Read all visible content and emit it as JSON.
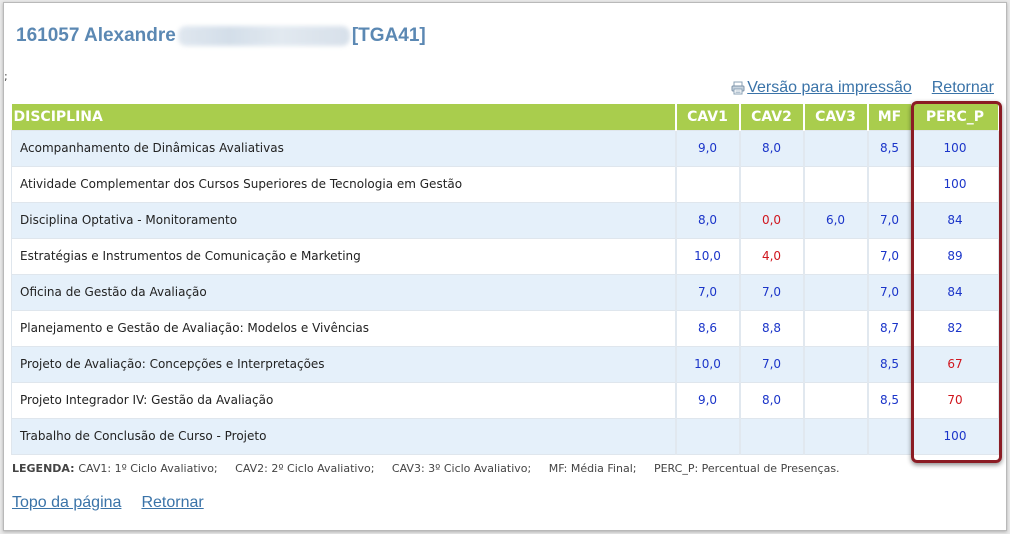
{
  "header": {
    "student_id_name": "161057 Alexandre",
    "class_code": "[TGA41]"
  },
  "stray_char": ";",
  "links": {
    "print_version": "Versão para impressão",
    "back_top": "Retornar",
    "page_top": "Topo da página",
    "back_bottom": "Retornar"
  },
  "table": {
    "columns": [
      "DISCIPLINA",
      "CAV1",
      "CAV2",
      "CAV3",
      "MF",
      "PERC_P"
    ],
    "rows": [
      {
        "disciplina": "Acompanhamento de Dinâmicas Avaliativas",
        "cav1": "9,0",
        "cav2": "8,0",
        "cav3": "",
        "mf": "8,5",
        "perc": "100"
      },
      {
        "disciplina": "Atividade Complementar dos Cursos Superiores de Tecnologia em Gestão",
        "cav1": "",
        "cav2": "",
        "cav3": "",
        "mf": "",
        "perc": "100"
      },
      {
        "disciplina": "Disciplina Optativa - Monitoramento",
        "cav1": "8,0",
        "cav2": "0,0",
        "cav3": "6,0",
        "mf": "7,0",
        "perc": "84"
      },
      {
        "disciplina": "Estratégias e Instrumentos de Comunicação e Marketing",
        "cav1": "10,0",
        "cav2": "4,0",
        "cav3": "",
        "mf": "7,0",
        "perc": "89"
      },
      {
        "disciplina": "Oficina de Gestão da Avaliação",
        "cav1": "7,0",
        "cav2": "7,0",
        "cav3": "",
        "mf": "7,0",
        "perc": "84"
      },
      {
        "disciplina": "Planejamento e Gestão de Avaliação: Modelos e Vivências",
        "cav1": "8,6",
        "cav2": "8,8",
        "cav3": "",
        "mf": "8,7",
        "perc": "82"
      },
      {
        "disciplina": "Projeto de Avaliação: Concepções e Interpretações",
        "cav1": "10,0",
        "cav2": "7,0",
        "cav3": "",
        "mf": "8,5",
        "perc": "67"
      },
      {
        "disciplina": "Projeto Integrador IV: Gestão da Avaliação",
        "cav1": "9,0",
        "cav2": "8,0",
        "cav3": "",
        "mf": "8,5",
        "perc": "70"
      },
      {
        "disciplina": "Trabalho de Conclusão de Curso - Projeto",
        "cav1": "",
        "cav2": "",
        "cav3": "",
        "mf": "",
        "perc": "100"
      }
    ]
  },
  "legend": {
    "label": "LEGENDA:",
    "items": [
      "CAV1: 1º Ciclo Avaliativo;",
      "CAV2: 2º Ciclo Avaliativo;",
      "CAV3: 3º Ciclo Avaliativo;",
      "MF: Média Final;",
      "PERC_P: Percentual de Presenças."
    ]
  },
  "colors": {
    "header_green": "#a9cd4d",
    "title_blue": "#5b88b3",
    "value_blue": "#1b35c9",
    "value_red": "#d0161e",
    "highlight_border": "#8b1c24"
  }
}
